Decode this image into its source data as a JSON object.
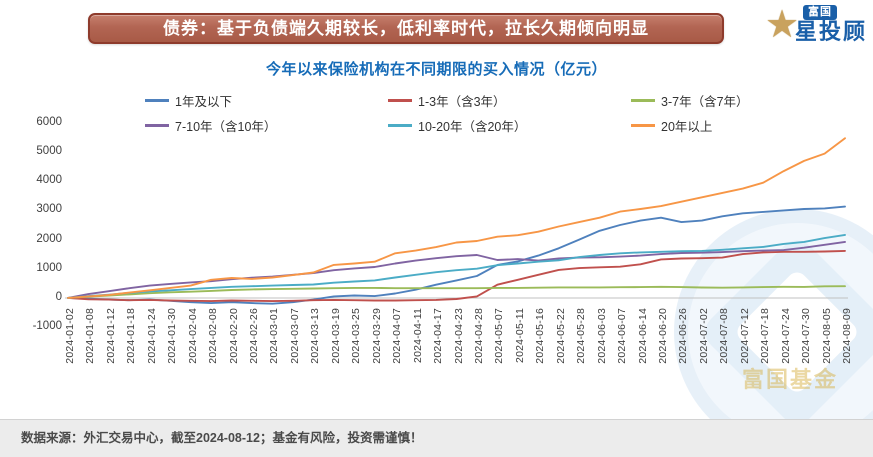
{
  "header": {
    "banner_title": "债券：基于负债端久期较长，低利率时代，拉长久期倾向明显",
    "logo": {
      "badge": "富国",
      "brand": "星投顾",
      "star_icon": "gold-star"
    }
  },
  "subtitle": "今年以来保险机构在不同期限的买入情况（亿元）",
  "watermark_text": "富国基金",
  "footer": {
    "source_note": "数据来源：外汇交易中心，截至2024-08-12；基金有风险，投资需谨慎！"
  },
  "colors": {
    "banner_fill": "#b26553",
    "banner_border": "#8e3b2c",
    "subtitle_blue": "#176cb8",
    "axis_gray": "#c0c0c0"
  },
  "chart_data": {
    "type": "line",
    "title": "今年以来保险机构在不同期限的买入情况（亿元）",
    "xlabel": "",
    "ylabel": "",
    "ylim": [
      -1000,
      6000
    ],
    "yticks": [
      6000,
      5000,
      4000,
      3000,
      2000,
      1000,
      0,
      -1000
    ],
    "grid": false,
    "legend_position": "top",
    "x": [
      "2024-01-02",
      "2024-01-08",
      "2024-01-12",
      "2024-01-18",
      "2024-01-24",
      "2024-01-30",
      "2024-02-04",
      "2024-02-08",
      "2024-02-20",
      "2024-02-26",
      "2024-03-01",
      "2024-03-07",
      "2024-03-13",
      "2024-03-19",
      "2024-03-25",
      "2024-03-29",
      "2024-04-07",
      "2024-04-11",
      "2024-04-17",
      "2024-04-23",
      "2024-04-28",
      "2024-05-07",
      "2024-05-11",
      "2024-05-16",
      "2024-05-22",
      "2024-05-28",
      "2024-06-03",
      "2024-06-07",
      "2024-06-14",
      "2024-06-20",
      "2024-06-26",
      "2024-07-02",
      "2024-07-08",
      "2024-07-12",
      "2024-07-18",
      "2024-07-24",
      "2024-07-30",
      "2024-08-05",
      "2024-08-09"
    ],
    "series": [
      {
        "name": "1年及以下",
        "color": "#4F81BD",
        "values": [
          0,
          -30,
          -60,
          -80,
          -60,
          -100,
          -150,
          -180,
          -150,
          -180,
          -200,
          -150,
          -60,
          50,
          80,
          60,
          150,
          280,
          450,
          600,
          750,
          1130,
          1250,
          1450,
          1700,
          2000,
          2300,
          2500,
          2650,
          2750,
          2600,
          2650,
          2800,
          2900,
          2950,
          3000,
          3050,
          3070,
          3130
        ]
      },
      {
        "name": "1-3年（含3年）",
        "color": "#C0504D",
        "values": [
          0,
          -50,
          -60,
          -80,
          -70,
          -90,
          -100,
          -110,
          -90,
          -100,
          -110,
          -100,
          -80,
          -70,
          -80,
          -90,
          -90,
          -80,
          -70,
          -40,
          50,
          450,
          620,
          790,
          960,
          1020,
          1050,
          1070,
          1150,
          1320,
          1350,
          1360,
          1380,
          1500,
          1560,
          1580,
          1580,
          1590,
          1610
        ]
      },
      {
        "name": "3-7年（含7年）",
        "color": "#9BBB59",
        "values": [
          0,
          40,
          80,
          120,
          160,
          190,
          210,
          240,
          270,
          290,
          300,
          310,
          320,
          330,
          340,
          340,
          330,
          330,
          330,
          330,
          330,
          340,
          340,
          350,
          360,
          360,
          360,
          365,
          370,
          380,
          370,
          355,
          350,
          360,
          370,
          380,
          375,
          395,
          400
        ]
      },
      {
        "name": "7-10年（含10年）",
        "color": "#8064A2",
        "values": [
          0,
          130,
          230,
          330,
          420,
          480,
          530,
          570,
          640,
          690,
          730,
          790,
          850,
          950,
          1010,
          1060,
          1180,
          1280,
          1360,
          1430,
          1470,
          1300,
          1330,
          1280,
          1350,
          1380,
          1390,
          1415,
          1450,
          1500,
          1540,
          1550,
          1570,
          1600,
          1620,
          1640,
          1720,
          1820,
          1920
        ]
      },
      {
        "name": "10-20年（含20年）",
        "color": "#4BACC6",
        "values": [
          0,
          60,
          110,
          170,
          220,
          260,
          300,
          340,
          380,
          400,
          420,
          440,
          460,
          520,
          560,
          600,
          700,
          790,
          880,
          950,
          1000,
          1120,
          1180,
          1240,
          1290,
          1400,
          1470,
          1530,
          1560,
          1580,
          1600,
          1610,
          1650,
          1700,
          1750,
          1850,
          1920,
          2050,
          2160
        ]
      },
      {
        "name": "20年以上",
        "color": "#F79646",
        "values": [
          0,
          50,
          100,
          180,
          260,
          340,
          420,
          620,
          680,
          650,
          700,
          780,
          870,
          1130,
          1180,
          1240,
          1530,
          1620,
          1740,
          1900,
          1950,
          2100,
          2150,
          2270,
          2450,
          2600,
          2750,
          2960,
          3050,
          3150,
          3300,
          3450,
          3600,
          3750,
          3950,
          4350,
          4700,
          4950,
          5480
        ]
      }
    ]
  }
}
